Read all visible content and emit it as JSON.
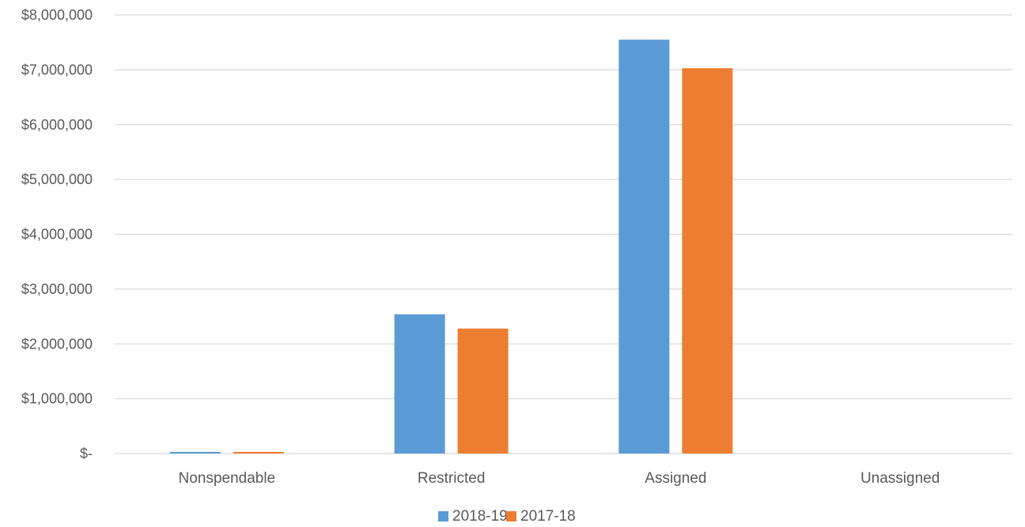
{
  "chart_data": {
    "type": "bar",
    "categories": [
      "Nonspendable",
      "Restricted",
      "Assigned",
      "Unassigned"
    ],
    "series": [
      {
        "name": "2018-19",
        "color": "#5B9BD5",
        "values": [
          30000,
          2540000,
          7550000,
          0
        ]
      },
      {
        "name": "2017-18",
        "color": "#ED7D31",
        "values": [
          30000,
          2280000,
          7030000,
          0
        ]
      }
    ],
    "ylim": [
      0,
      8000000
    ],
    "y_ticks": [
      0,
      1000000,
      2000000,
      3000000,
      4000000,
      5000000,
      6000000,
      7000000,
      8000000
    ],
    "y_tick_labels": [
      "$-",
      "$1,000,000",
      "$2,000,000",
      "$3,000,000",
      "$4,000,000",
      "$5,000,000",
      "$6,000,000",
      "$7,000,000",
      "$8,000,000"
    ],
    "grid": true,
    "legend_position": "bottom",
    "gridline_color": "#D9D9D9",
    "text_color": "#595959"
  }
}
